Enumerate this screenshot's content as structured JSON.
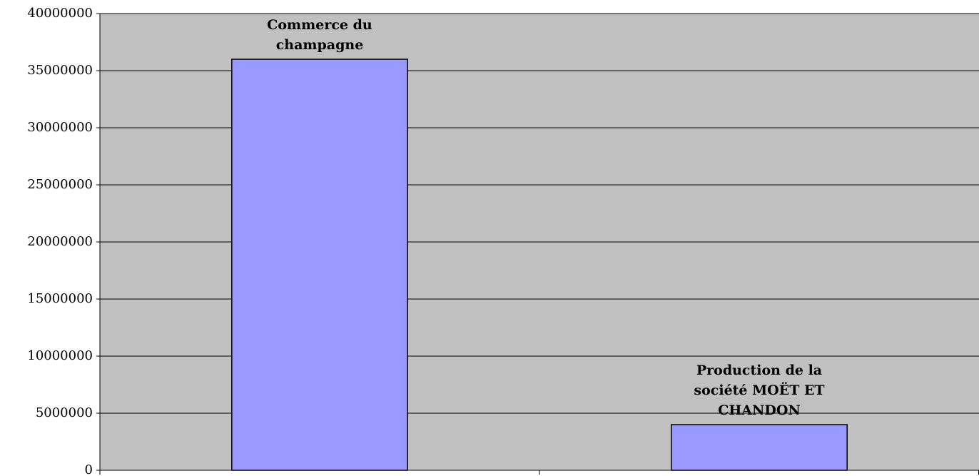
{
  "chart_data": {
    "type": "bar",
    "categories": [
      "Commerce du champagne",
      "Production de la société MOËT ET CHANDON"
    ],
    "values": [
      36000000,
      4000000
    ],
    "color": "#9999ff",
    "ylim": [
      0,
      40000000
    ],
    "yticks": [
      0,
      5000000,
      10000000,
      15000000,
      20000000,
      25000000,
      30000000,
      35000000,
      40000000
    ],
    "grid": true
  }
}
